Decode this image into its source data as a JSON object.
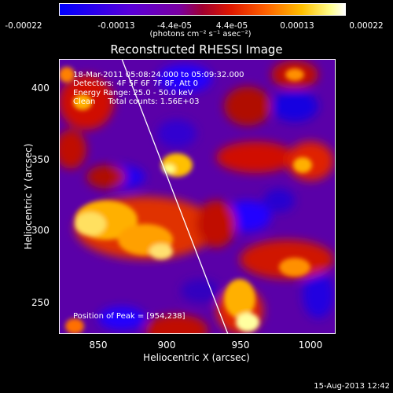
{
  "colorbar": {
    "ticks": [
      "-0.00022",
      "-0.00013",
      "-4.4e-05",
      "4.4e-05",
      "0.00013",
      "0.00022"
    ],
    "units": "(photons cm⁻² s⁻¹ asec⁻²)",
    "colors": [
      "#0000ff",
      "#5a00d8",
      "#7c00a8",
      "#a00040",
      "#d41000",
      "#ff5a00",
      "#ffb000",
      "#ffff80",
      "#ffffff"
    ]
  },
  "title": "Reconstructed RHESSI Image",
  "info": {
    "line1": "18-Mar-2011 05:08:24.000 to 05:09:32.000",
    "line2": "Detectors: 4F 5F 6F 7F 8F, Att 0",
    "line3": "Energy Range: 25.0 - 50.0 keV",
    "line4": "Clean     Total counts: 1.56E+03"
  },
  "peak_label": "Position of Peak = [954,238]",
  "axes": {
    "xlabel": "Heliocentric X (arcsec)",
    "ylabel": "Heliocentric Y (arcsec)",
    "xticks": [
      "850",
      "900",
      "950",
      "1000"
    ],
    "yticks": [
      "400",
      "350",
      "300",
      "250"
    ]
  },
  "footer": "15-Aug-2013 12:42"
}
